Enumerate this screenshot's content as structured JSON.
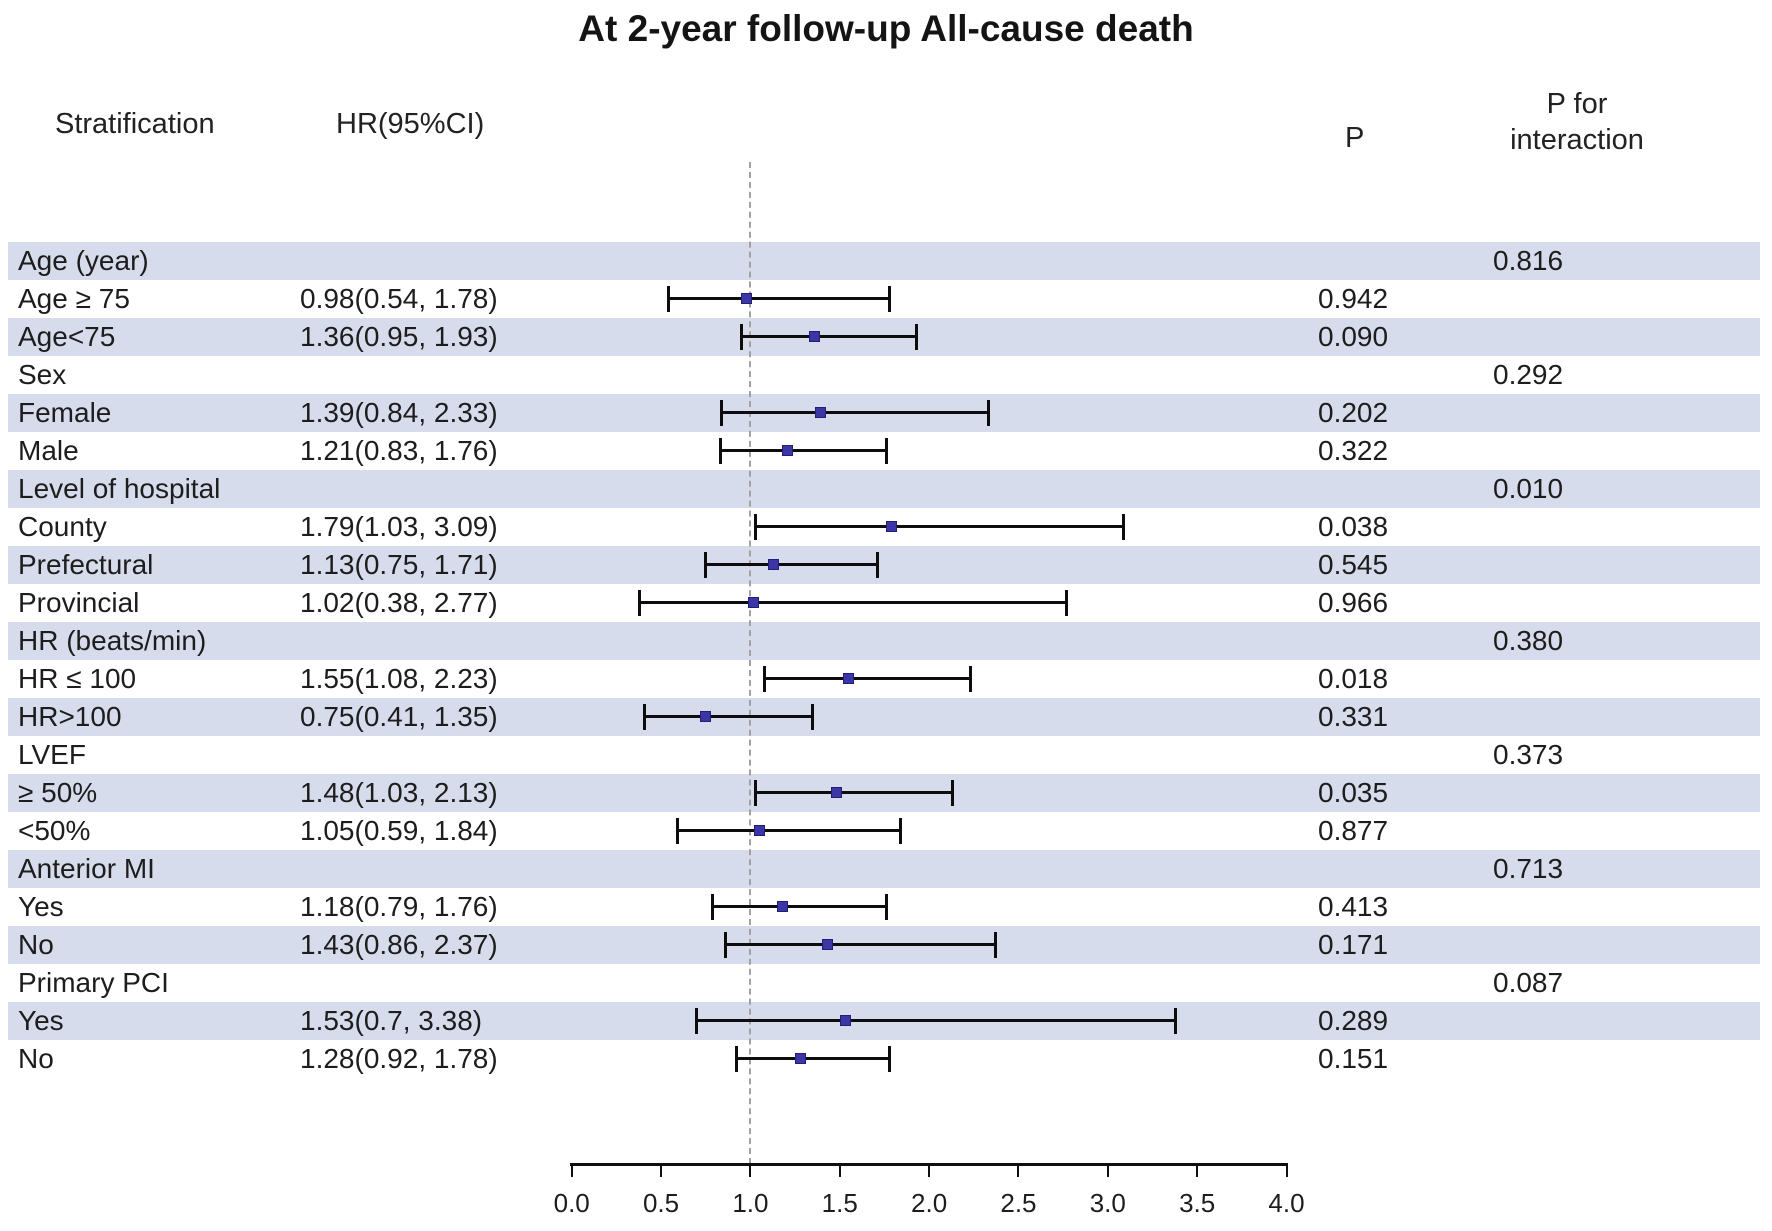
{
  "title": "At 2-year follow-up All-cause death",
  "columns": {
    "stratification": "Stratification",
    "hr": "HR(95%CI)",
    "p": "P",
    "p_interaction_line1": "P for",
    "p_interaction_line2": "interaction"
  },
  "colors": {
    "band": "#d7dcec",
    "marker": "#3c35a6",
    "marker_border": "#241d74",
    "ci_line": "#0d0d0d",
    "reference_line": "#a2a2a2",
    "text": "#1d1d1d"
  },
  "chart_data": {
    "type": "forest",
    "title": "At 2-year follow-up All-cause death",
    "x_axis": {
      "min": 0,
      "max": 4,
      "step": 0.5,
      "tick_labels": [
        "0.0",
        "0.5",
        "1.0",
        "1.5",
        "2.0",
        "2.5",
        "3.0",
        "3.5",
        "4.0"
      ],
      "reference_line": 1.0
    },
    "legend_position": "none",
    "grid": false,
    "rows": [
      {
        "label": "Age (year)",
        "p_interaction": "0.816"
      },
      {
        "label": "Age ≥ 75",
        "hr_text": "0.98(0.54, 1.78)",
        "est": 0.98,
        "lo": 0.54,
        "hi": 1.78,
        "p": "0.942"
      },
      {
        "label": "Age<75",
        "hr_text": "1.36(0.95, 1.93)",
        "est": 1.36,
        "lo": 0.95,
        "hi": 1.93,
        "p": "0.090"
      },
      {
        "label": "Sex",
        "p_interaction": "0.292"
      },
      {
        "label": "Female",
        "hr_text": "1.39(0.84, 2.33)",
        "est": 1.39,
        "lo": 0.84,
        "hi": 2.33,
        "p": "0.202"
      },
      {
        "label": "Male",
        "hr_text": "1.21(0.83, 1.76)",
        "est": 1.21,
        "lo": 0.83,
        "hi": 1.76,
        "p": "0.322"
      },
      {
        "label": "Level of hospital",
        "p_interaction": "0.010"
      },
      {
        "label": "County",
        "hr_text": "1.79(1.03, 3.09)",
        "est": 1.79,
        "lo": 1.03,
        "hi": 3.09,
        "p": "0.038"
      },
      {
        "label": "Prefectural",
        "hr_text": "1.13(0.75, 1.71)",
        "est": 1.13,
        "lo": 0.75,
        "hi": 1.71,
        "p": "0.545"
      },
      {
        "label": "Provincial",
        "hr_text": "1.02(0.38, 2.77)",
        "est": 1.02,
        "lo": 0.38,
        "hi": 2.77,
        "p": "0.966"
      },
      {
        "label": "HR (beats/min)",
        "p_interaction": "0.380"
      },
      {
        "label": "HR ≤ 100",
        "hr_text": "1.55(1.08, 2.23)",
        "est": 1.55,
        "lo": 1.08,
        "hi": 2.23,
        "p": "0.018"
      },
      {
        "label": "HR>100",
        "hr_text": "0.75(0.41, 1.35)",
        "est": 0.75,
        "lo": 0.41,
        "hi": 1.35,
        "p": "0.331"
      },
      {
        "label": "LVEF",
        "p_interaction": "0.373"
      },
      {
        "label": "≥ 50%",
        "hr_text": "1.48(1.03, 2.13)",
        "est": 1.48,
        "lo": 1.03,
        "hi": 2.13,
        "p": "0.035"
      },
      {
        "label": "<50%",
        "hr_text": "1.05(0.59, 1.84)",
        "est": 1.05,
        "lo": 0.59,
        "hi": 1.84,
        "p": "0.877"
      },
      {
        "label": "Anterior MI",
        "p_interaction": "0.713"
      },
      {
        "label": "Yes",
        "hr_text": "1.18(0.79, 1.76)",
        "est": 1.18,
        "lo": 0.79,
        "hi": 1.76,
        "p": "0.413"
      },
      {
        "label": "No",
        "hr_text": "1.43(0.86, 2.37)",
        "est": 1.43,
        "lo": 0.86,
        "hi": 2.37,
        "p": "0.171"
      },
      {
        "label": "Primary PCI",
        "p_interaction": "0.087"
      },
      {
        "label": "Yes",
        "hr_text": "1.53(0.7, 3.38)",
        "est": 1.53,
        "lo": 0.7,
        "hi": 3.38,
        "p": "0.289"
      },
      {
        "label": "No",
        "hr_text": "1.28(0.92, 1.78)",
        "est": 1.28,
        "lo": 0.92,
        "hi": 1.78,
        "p": "0.151"
      }
    ]
  }
}
